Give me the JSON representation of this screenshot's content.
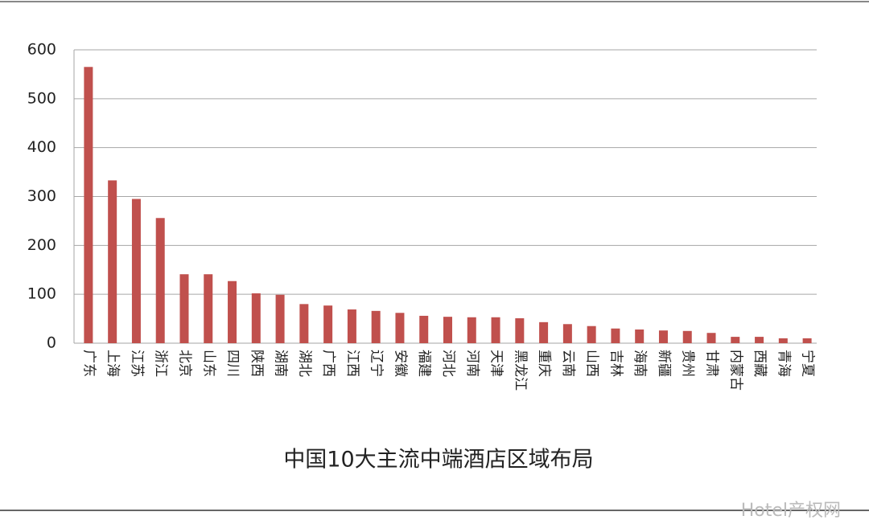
{
  "chart_data": {
    "type": "bar",
    "title": "中国10大主流中端酒店区域布局",
    "categories": [
      "广东",
      "上海",
      "江苏",
      "浙江",
      "北京",
      "山东",
      "四川",
      "陕西",
      "湖南",
      "湖北",
      "广西",
      "江西",
      "辽宁",
      "安徽",
      "福建",
      "河北",
      "河南",
      "天津",
      "黑龙江",
      "重庆",
      "云南",
      "山西",
      "吉林",
      "海南",
      "新疆",
      "贵州",
      "甘肃",
      "内蒙古",
      "西藏",
      "青海",
      "宁夏"
    ],
    "values": [
      565,
      333,
      295,
      256,
      141,
      141,
      127,
      102,
      99,
      80,
      77,
      69,
      66,
      62,
      56,
      54,
      53,
      53,
      51,
      43,
      39,
      35,
      30,
      28,
      26,
      25,
      21,
      13,
      13,
      10,
      10
    ],
    "color": "#c0504d",
    "ylim": [
      0,
      600
    ],
    "yticks": [
      0,
      100,
      200,
      300,
      400,
      500,
      600
    ],
    "grid": true,
    "watermark": "Hotel产权网"
  }
}
